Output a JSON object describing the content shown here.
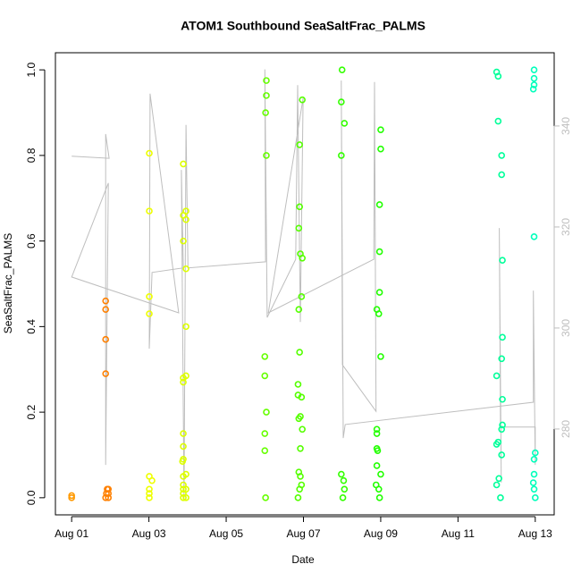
{
  "chart_data": {
    "type": "scatter",
    "title": "ATOM1 Southbound SeaSaltFrac_PALMS",
    "x_label": "Date",
    "y_label": "SeaSaltFrac_PALMS",
    "xlim": [
      0.58,
      13.49
    ],
    "xticks": [
      {
        "value": 1,
        "label": "Aug 01"
      },
      {
        "value": 3,
        "label": "Aug 03"
      },
      {
        "value": 5,
        "label": "Aug 05"
      },
      {
        "value": 7,
        "label": "Aug 07"
      },
      {
        "value": 9,
        "label": "Aug 09"
      },
      {
        "value": 11,
        "label": "Aug 11"
      },
      {
        "value": 13,
        "label": "Aug 13"
      }
    ],
    "ylim": [
      -0.04,
      1.04
    ],
    "yticks": [
      {
        "value": 0,
        "label": "0.0"
      },
      0.2,
      0.4,
      0.6,
      0.8,
      {
        "value": 1,
        "label": "1.0"
      }
    ],
    "y2lim": [
      263.0,
      354.5
    ],
    "y2ticks": [
      280,
      300,
      320,
      340
    ],
    "groups": [
      {
        "color": "#FF9900",
        "x": [
          1.0,
          1.0
        ],
        "values": [
          0.0,
          0.005
        ]
      },
      {
        "color": "#FF8000",
        "x": [
          1.88,
          1.88,
          1.88,
          1.88,
          1.88,
          1.9,
          1.92,
          1.95,
          1.95,
          1.95
        ],
        "values": [
          0.46,
          0.44,
          0.37,
          0.29,
          0.0,
          0.01,
          0.02,
          0.0,
          0.01,
          0.02
        ]
      },
      {
        "color": "#EEFF00",
        "x": [
          3.01,
          3.01,
          3.01,
          3.01,
          3.01,
          3.01,
          3.01,
          3.01,
          3.08
        ],
        "values": [
          0.805,
          0.67,
          0.47,
          0.43,
          0.05,
          0.02,
          0.01,
          0.0,
          0.04
        ]
      },
      {
        "color": "#DDFF00",
        "x": [
          3.89,
          3.89,
          3.89,
          3.89,
          3.89,
          3.89,
          3.89,
          3.89,
          3.87,
          3.89,
          3.89,
          3.89,
          3.89,
          3.89,
          3.96,
          3.96,
          3.96,
          3.96,
          3.96,
          3.96,
          3.96,
          3.96
        ],
        "values": [
          0.78,
          0.66,
          0.6,
          0.28,
          0.27,
          0.15,
          0.12,
          0.09,
          0.085,
          0.05,
          0.03,
          0.02,
          0.01,
          0.0,
          0.67,
          0.65,
          0.535,
          0.4,
          0.285,
          0.055,
          0.0,
          0.02
        ]
      },
      {
        "color": "#66FF00",
        "x": [
          6.04,
          6.04,
          6.02,
          6.04,
          6.0,
          6.0,
          6.04,
          6.0,
          6.0,
          6.02
        ],
        "values": [
          0.975,
          0.94,
          0.9,
          0.8,
          0.33,
          0.285,
          0.2,
          0.15,
          0.11,
          0.0
        ]
      },
      {
        "color": "#55FF00",
        "x": [
          6.97,
          6.9,
          6.9,
          6.88,
          6.92,
          6.97,
          6.95,
          6.88,
          6.9,
          6.86,
          6.86,
          6.95,
          6.92,
          6.88,
          6.97,
          6.92,
          6.88,
          6.92,
          6.95,
          6.9,
          6.86
        ],
        "values": [
          0.93,
          0.825,
          0.68,
          0.63,
          0.57,
          0.56,
          0.47,
          0.44,
          0.34,
          0.265,
          0.24,
          0.235,
          0.19,
          0.185,
          0.16,
          0.115,
          0.06,
          0.05,
          0.03,
          0.02,
          0.0
        ]
      },
      {
        "color": "#33FF00",
        "x": [
          8.0,
          7.98,
          8.06,
          7.98,
          7.98,
          8.04,
          8.06,
          8.02
        ],
        "values": [
          1.0,
          0.925,
          0.875,
          0.8,
          0.055,
          0.04,
          0.02,
          0.0
        ]
      },
      {
        "color": "#22FF00",
        "x": [
          9.0,
          9.0,
          8.97,
          8.97,
          8.97,
          8.9,
          8.95,
          9.0,
          8.9,
          8.9,
          8.9,
          8.92,
          8.9,
          9.0,
          8.88,
          8.95,
          8.97
        ],
        "values": [
          0.86,
          0.815,
          0.685,
          0.575,
          0.48,
          0.44,
          0.43,
          0.33,
          0.16,
          0.15,
          0.115,
          0.11,
          0.075,
          0.055,
          0.03,
          0.02,
          0.0
        ]
      },
      {
        "color": "#00FF99",
        "x": [
          12.0,
          12.04,
          12.04,
          12.13,
          12.13,
          12.15,
          12.15,
          12.13,
          12.0,
          12.15,
          12.15,
          12.13,
          12.04,
          12.0,
          12.13,
          12.06,
          12.0,
          12.1
        ],
        "values": [
          0.995,
          0.985,
          0.88,
          0.8,
          0.755,
          0.555,
          0.375,
          0.325,
          0.285,
          0.23,
          0.17,
          0.16,
          0.13,
          0.125,
          0.1,
          0.045,
          0.03,
          0.0
        ]
      },
      {
        "color": "#00FFBB",
        "x": [
          12.97,
          12.97,
          12.97,
          12.95,
          12.97,
          13.0,
          12.97,
          12.97,
          12.95,
          12.97,
          13.0
        ],
        "values": [
          1.0,
          0.98,
          0.965,
          0.955,
          0.61,
          0.105,
          0.09,
          0.055,
          0.035,
          0.02,
          0.0
        ]
      }
    ],
    "line": {
      "color": "#BEBEBE",
      "axis": "y2",
      "x": [
        1.0,
        1.97,
        1.88,
        1.88,
        1.95,
        1.0,
        3.77,
        3.03,
        3.01,
        3.08,
        3.89,
        3.84,
        3.91,
        3.96,
        4.01,
        6.02,
        6.0,
        6.06,
        6.8,
        6.85,
        6.92,
        6.99,
        6.09,
        8.82,
        8.84,
        8.88,
        8.01,
        7.98,
        8.03,
        8.08,
        12.95,
        12.95,
        13.0,
        13.0,
        12.1,
        12.07,
        12.12
      ],
      "values": [
        334.0,
        333.6,
        338.4,
        272.9,
        328.7,
        310.1,
        303.0,
        346.4,
        295.9,
        311.0,
        311.9,
        331.3,
        265.8,
        340.2,
        311.9,
        313.1,
        351.2,
        302.1,
        313.6,
        348.1,
        301.2,
        345.5,
        303.0,
        313.6,
        348.7,
        283.5,
        292.7,
        349.0,
        278.2,
        280.9,
        285.3,
        307.4,
        272.9,
        280.4,
        280.4,
        319.8,
        269.4
      ]
    }
  }
}
